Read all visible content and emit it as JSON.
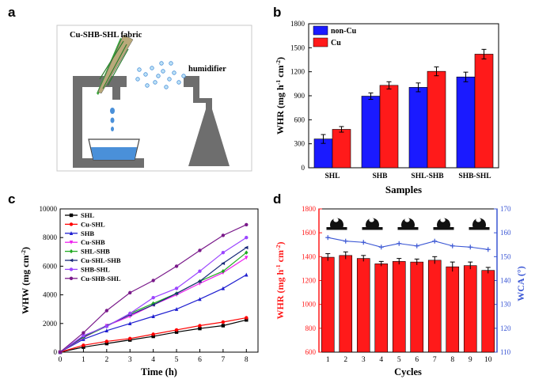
{
  "panels": {
    "a": {
      "letter": "a",
      "fabric_label": "Cu-SHB-SHL fabric",
      "humidifier_label": "humidifier"
    },
    "b": {
      "letter": "b"
    },
    "c": {
      "letter": "c"
    },
    "d": {
      "letter": "d"
    }
  },
  "colors": {
    "blue": "#1a1aff",
    "red": "#ff1a1a",
    "gray": "#6e6e6e",
    "water": "#4a90d9"
  },
  "chart_data": [
    {
      "id": "b",
      "type": "bar",
      "xlabel": "Samples",
      "ylabel": "WHR (mg h⁻¹ cm⁻²)",
      "ylim": [
        0,
        1800
      ],
      "yticks": [
        0,
        300,
        600,
        900,
        1200,
        1500,
        1800
      ],
      "categories": [
        "SHL",
        "SHB",
        "SHL-SHB",
        "SHB-SHL"
      ],
      "legend_position": "top-left",
      "series": [
        {
          "name": "non-Cu",
          "color": "#1a1aff",
          "values": [
            360,
            895,
            1005,
            1135
          ],
          "errors": [
            55,
            40,
            55,
            60
          ]
        },
        {
          "name": "Cu",
          "color": "#ff1a1a",
          "values": [
            480,
            1030,
            1205,
            1420
          ],
          "errors": [
            35,
            45,
            55,
            60
          ]
        }
      ]
    },
    {
      "id": "c",
      "type": "line",
      "xlabel": "Time (h)",
      "ylabel": "WHW (mg cm⁻²)",
      "xlim": [
        0,
        8.5
      ],
      "ylim": [
        0,
        10000
      ],
      "xticks": [
        0,
        1,
        2,
        3,
        4,
        5,
        6,
        7,
        8
      ],
      "yticks": [
        0,
        2000,
        4000,
        6000,
        8000,
        10000
      ],
      "x": [
        0,
        1,
        2,
        3,
        4,
        5,
        6,
        7,
        8
      ],
      "legend_position": "top-left",
      "series": [
        {
          "name": "SHL",
          "color": "#000000",
          "marker": "square",
          "values": [
            0,
            350,
            600,
            850,
            1100,
            1400,
            1650,
            1850,
            2250
          ]
        },
        {
          "name": "Cu-SHL",
          "color": "#ff0000",
          "marker": "circle",
          "values": [
            0,
            480,
            750,
            950,
            1250,
            1550,
            1850,
            2100,
            2400
          ]
        },
        {
          "name": "SHB",
          "color": "#1f1fd0",
          "marker": "triangle",
          "values": [
            0,
            900,
            1500,
            2000,
            2500,
            3000,
            3700,
            4450,
            5400
          ]
        },
        {
          "name": "Cu-SHB",
          "color": "#ee22ee",
          "marker": "triangle-down",
          "values": [
            0,
            1000,
            1850,
            2500,
            3300,
            4000,
            4800,
            5550,
            6600
          ]
        },
        {
          "name": "SHL-SHB",
          "color": "#22aa22",
          "marker": "diamond",
          "values": [
            0,
            1050,
            1800,
            2700,
            3400,
            4100,
            4950,
            5650,
            6950
          ]
        },
        {
          "name": "Cu-SHL-SHB",
          "color": "#1a2a7a",
          "marker": "triangle-left",
          "values": [
            0,
            1100,
            1850,
            2600,
            3300,
            4100,
            4950,
            6200,
            7300
          ]
        },
        {
          "name": "SHB-SHL",
          "color": "#9b45ff",
          "marker": "star",
          "values": [
            0,
            1150,
            1800,
            2700,
            3800,
            4450,
            5650,
            6950,
            8000
          ]
        },
        {
          "name": "Cu-SHB-SHL",
          "color": "#7a1a8a",
          "marker": "hexagon",
          "values": [
            0,
            1350,
            2900,
            4150,
            5000,
            6000,
            7100,
            8150,
            8900
          ]
        }
      ]
    },
    {
      "id": "d",
      "type": "bar",
      "xlabel": "Cycles",
      "ylabel": "WHR (mg h⁻¹ cm⁻²)",
      "y2label": "WCA (°)",
      "ylim": [
        600,
        1800
      ],
      "yticks": [
        600,
        800,
        1000,
        1200,
        1400,
        1600,
        1800
      ],
      "y2lim": [
        110,
        170
      ],
      "y2ticks": [
        110,
        120,
        130,
        140,
        150,
        160,
        170
      ],
      "categories": [
        "1",
        "2",
        "3",
        "4",
        "5",
        "6",
        "7",
        "8",
        "9",
        "10"
      ],
      "series": [
        {
          "name": "WHR",
          "color": "#ff1a1a",
          "values": [
            1395,
            1410,
            1385,
            1340,
            1360,
            1355,
            1370,
            1315,
            1325,
            1285
          ],
          "errors": [
            30,
            30,
            25,
            20,
            25,
            25,
            30,
            40,
            30,
            25
          ]
        },
        {
          "name": "WCA",
          "color": "#3a56d4",
          "type": "line",
          "values": [
            158,
            156.5,
            156,
            154,
            155.5,
            154.5,
            156.5,
            154.5,
            154,
            153
          ]
        }
      ]
    }
  ]
}
